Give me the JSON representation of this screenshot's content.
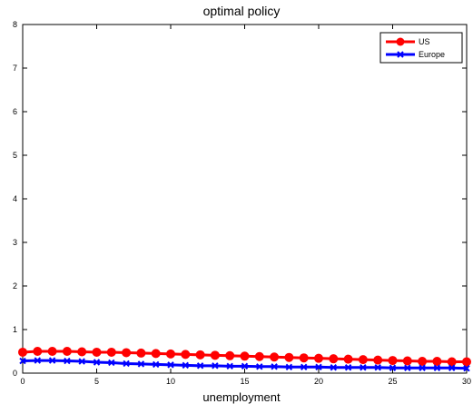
{
  "chart_data": {
    "type": "line",
    "title": "optimal policy",
    "xlabel": "unemployment",
    "ylabel": "",
    "xlim": [
      0,
      30
    ],
    "ylim": [
      0,
      8
    ],
    "x_ticks": [
      0,
      5,
      10,
      15,
      20,
      25,
      30
    ],
    "y_ticks": [
      0,
      1,
      2,
      3,
      4,
      5,
      6,
      7,
      8
    ],
    "grid": false,
    "legend_position": "top-right",
    "x": [
      0,
      1,
      2,
      3,
      4,
      5,
      6,
      7,
      8,
      9,
      10,
      11,
      12,
      13,
      14,
      15,
      16,
      17,
      18,
      19,
      20,
      21,
      22,
      23,
      24,
      25,
      26,
      27,
      28,
      29,
      30
    ],
    "series": [
      {
        "name": "US",
        "color": "#ff0000",
        "marker": "circle",
        "values": [
          0.48,
          0.5,
          0.5,
          0.5,
          0.49,
          0.48,
          0.48,
          0.47,
          0.46,
          0.45,
          0.44,
          0.43,
          0.42,
          0.41,
          0.4,
          0.39,
          0.38,
          0.37,
          0.36,
          0.35,
          0.34,
          0.33,
          0.32,
          0.31,
          0.3,
          0.29,
          0.28,
          0.27,
          0.27,
          0.26,
          0.26
        ]
      },
      {
        "name": "Europe",
        "color": "#0000ff",
        "marker": "x",
        "values": [
          0.28,
          0.29,
          0.29,
          0.28,
          0.27,
          0.25,
          0.24,
          0.22,
          0.21,
          0.2,
          0.19,
          0.18,
          0.17,
          0.17,
          0.16,
          0.16,
          0.15,
          0.15,
          0.14,
          0.14,
          0.14,
          0.13,
          0.13,
          0.13,
          0.13,
          0.12,
          0.12,
          0.12,
          0.12,
          0.12,
          0.11
        ]
      }
    ]
  }
}
